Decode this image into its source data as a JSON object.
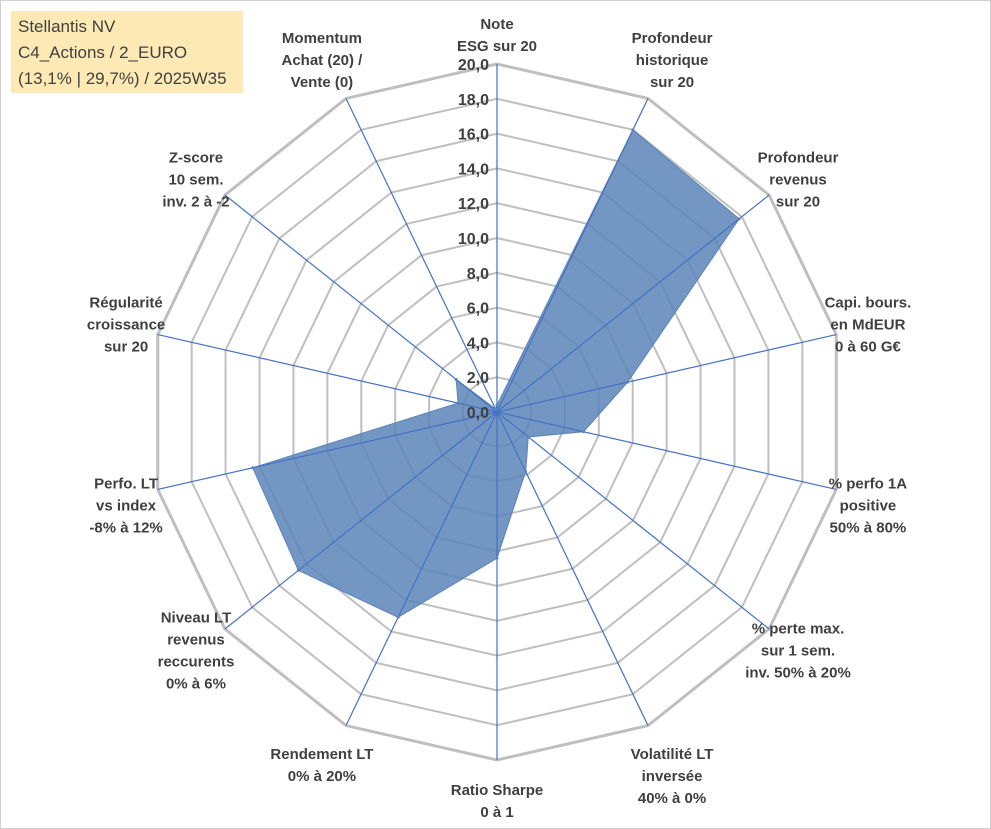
{
  "info_box": {
    "line1": "Stellantis NV",
    "line2": "C4_Actions / 2_EURO",
    "line3": "(13,1% | 29,7%) / 2025W35"
  },
  "colors": {
    "grid": "#bfbfbf",
    "spoke": "#4472c4",
    "fill": "#5b84b9",
    "box": "#fde9b3",
    "text": "#404040"
  },
  "chart_data": {
    "type": "radar",
    "title": "",
    "r_range": [
      0,
      20
    ],
    "r_tick_labels": [
      "0,0",
      "2,0",
      "4,0",
      "6,0",
      "8,0",
      "10,0",
      "12,0",
      "14,0",
      "16,0",
      "18,0",
      "20,0"
    ],
    "axes": [
      {
        "label": [
          "Note",
          "ESG sur 20"
        ]
      },
      {
        "label": [
          "Profondeur",
          "historique",
          "sur 20"
        ]
      },
      {
        "label": [
          "Profondeur",
          "revenus",
          "sur 20"
        ]
      },
      {
        "label": [
          "Capi. bours.",
          "en MdEUR",
          "0 à 60 G€"
        ]
      },
      {
        "label": [
          "% perfo 1A",
          "positive",
          "50% à 80%"
        ]
      },
      {
        "label": [
          "% perte max.",
          "sur 1 sem.",
          "inv. 50% à 20%"
        ]
      },
      {
        "label": [
          "Volatilité LT",
          "inversée",
          "40% à 0%"
        ]
      },
      {
        "label": [
          "Ratio Sharpe",
          "0 à 1"
        ]
      },
      {
        "label": [
          "Rendement LT",
          "0% à 20%"
        ]
      },
      {
        "label": [
          "Niveau LT",
          "revenus",
          "reccurents",
          "0% à 6%"
        ]
      },
      {
        "label": [
          "Perfo. LT",
          "vs index",
          "-8% à 12%"
        ]
      },
      {
        "label": [
          "Régularité",
          "croissance",
          "sur 20"
        ]
      },
      {
        "label": [
          "Z-score",
          "10 sem.",
          "inv. 2 à -2"
        ]
      },
      {
        "label": [
          "Momentum",
          "Achat (20) /",
          "Vente (0)"
        ]
      }
    ],
    "series": [
      {
        "values": [
          0.4,
          18.0,
          17.8,
          7.7,
          5.1,
          2.3,
          3.8,
          8.4,
          13.1,
          14.6,
          14.4,
          2.3,
          3.0,
          0.2
        ]
      }
    ],
    "grid": true,
    "legend": "none"
  }
}
